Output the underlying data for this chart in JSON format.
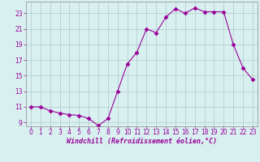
{
  "hours": [
    0,
    1,
    2,
    3,
    4,
    5,
    6,
    7,
    8,
    9,
    10,
    11,
    12,
    13,
    14,
    15,
    16,
    17,
    18,
    19,
    20,
    21,
    22,
    23
  ],
  "values": [
    11.0,
    11.0,
    10.5,
    10.2,
    10.0,
    9.9,
    9.5,
    8.6,
    9.5,
    13.0,
    16.5,
    18.0,
    21.0,
    20.5,
    22.5,
    23.6,
    23.0,
    23.7,
    23.2,
    23.2,
    23.2,
    19.0,
    16.0,
    14.5
  ],
  "line_color": "#990099",
  "marker": "D",
  "marker_size": 2.5,
  "bg_color": "#d8f0f0",
  "grid_color": "#b0c8c8",
  "xlabel": "Windchill (Refroidissement éolien,°C)",
  "ylim": [
    8.5,
    24.5
  ],
  "xlim": [
    -0.5,
    23.5
  ],
  "yticks": [
    9,
    11,
    13,
    15,
    17,
    19,
    21,
    23
  ],
  "xticks": [
    0,
    1,
    2,
    3,
    4,
    5,
    6,
    7,
    8,
    9,
    10,
    11,
    12,
    13,
    14,
    15,
    16,
    17,
    18,
    19,
    20,
    21,
    22,
    23
  ],
  "tick_color": "#990099",
  "label_color": "#990099",
  "tick_fontsize": 5.5,
  "xlabel_fontsize": 6.0
}
